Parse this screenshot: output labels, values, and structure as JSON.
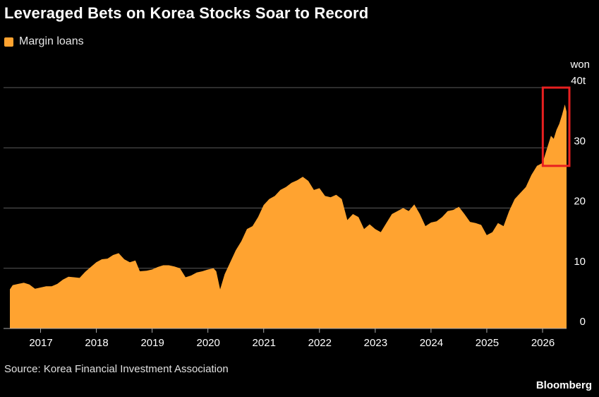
{
  "chart_data": {
    "type": "area",
    "title": "Leveraged Bets on Korea Stocks Soar to Record",
    "series": [
      {
        "name": "Margin loans",
        "color": "#ffa330"
      }
    ],
    "unit_label": "won",
    "y_ticks": [
      "0",
      "10",
      "20",
      "30",
      "40t"
    ],
    "ylim": [
      0,
      40
    ],
    "x_ticks": [
      "2017",
      "2018",
      "2019",
      "2020",
      "2021",
      "2022",
      "2023",
      "2024",
      "2025",
      "2026"
    ],
    "xlim": [
      2016.45,
      2026.43
    ],
    "points": [
      [
        2016.45,
        6.5
      ],
      [
        2016.5,
        7.2
      ],
      [
        2016.6,
        7.4
      ],
      [
        2016.7,
        7.6
      ],
      [
        2016.8,
        7.3
      ],
      [
        2016.9,
        6.6
      ],
      [
        2017.0,
        6.8
      ],
      [
        2017.1,
        7.0
      ],
      [
        2017.2,
        7.0
      ],
      [
        2017.3,
        7.4
      ],
      [
        2017.4,
        8.1
      ],
      [
        2017.5,
        8.6
      ],
      [
        2017.6,
        8.5
      ],
      [
        2017.7,
        8.4
      ],
      [
        2017.8,
        9.4
      ],
      [
        2017.9,
        10.2
      ],
      [
        2018.0,
        11.0
      ],
      [
        2018.1,
        11.5
      ],
      [
        2018.2,
        11.6
      ],
      [
        2018.3,
        12.2
      ],
      [
        2018.4,
        12.5
      ],
      [
        2018.5,
        11.5
      ],
      [
        2018.6,
        11.0
      ],
      [
        2018.7,
        11.3
      ],
      [
        2018.78,
        9.5
      ],
      [
        2018.9,
        9.6
      ],
      [
        2019.0,
        9.8
      ],
      [
        2019.1,
        10.2
      ],
      [
        2019.2,
        10.5
      ],
      [
        2019.3,
        10.5
      ],
      [
        2019.4,
        10.3
      ],
      [
        2019.5,
        10.0
      ],
      [
        2019.6,
        8.5
      ],
      [
        2019.7,
        8.8
      ],
      [
        2019.8,
        9.3
      ],
      [
        2019.9,
        9.5
      ],
      [
        2020.0,
        9.8
      ],
      [
        2020.1,
        10.0
      ],
      [
        2020.15,
        9.5
      ],
      [
        2020.22,
        6.5
      ],
      [
        2020.3,
        9.0
      ],
      [
        2020.4,
        11.0
      ],
      [
        2020.5,
        13.0
      ],
      [
        2020.6,
        14.5
      ],
      [
        2020.7,
        16.5
      ],
      [
        2020.8,
        17.0
      ],
      [
        2020.9,
        18.5
      ],
      [
        2021.0,
        20.5
      ],
      [
        2021.1,
        21.5
      ],
      [
        2021.2,
        22.0
      ],
      [
        2021.3,
        23.0
      ],
      [
        2021.4,
        23.5
      ],
      [
        2021.5,
        24.2
      ],
      [
        2021.6,
        24.6
      ],
      [
        2021.7,
        25.2
      ],
      [
        2021.8,
        24.5
      ],
      [
        2021.9,
        23.0
      ],
      [
        2022.0,
        23.3
      ],
      [
        2022.1,
        22.0
      ],
      [
        2022.2,
        21.8
      ],
      [
        2022.3,
        22.2
      ],
      [
        2022.4,
        21.5
      ],
      [
        2022.5,
        18.0
      ],
      [
        2022.6,
        19.0
      ],
      [
        2022.7,
        18.5
      ],
      [
        2022.8,
        16.5
      ],
      [
        2022.9,
        17.3
      ],
      [
        2023.0,
        16.5
      ],
      [
        2023.1,
        16.0
      ],
      [
        2023.2,
        17.5
      ],
      [
        2023.3,
        19.0
      ],
      [
        2023.4,
        19.5
      ],
      [
        2023.5,
        20.0
      ],
      [
        2023.6,
        19.5
      ],
      [
        2023.7,
        20.6
      ],
      [
        2023.8,
        19.0
      ],
      [
        2023.9,
        17.0
      ],
      [
        2024.0,
        17.6
      ],
      [
        2024.1,
        17.8
      ],
      [
        2024.2,
        18.5
      ],
      [
        2024.3,
        19.5
      ],
      [
        2024.4,
        19.7
      ],
      [
        2024.5,
        20.2
      ],
      [
        2024.6,
        19.0
      ],
      [
        2024.7,
        17.7
      ],
      [
        2024.8,
        17.5
      ],
      [
        2024.9,
        17.2
      ],
      [
        2025.0,
        15.5
      ],
      [
        2025.1,
        16.0
      ],
      [
        2025.2,
        17.5
      ],
      [
        2025.3,
        17.0
      ],
      [
        2025.4,
        19.5
      ],
      [
        2025.5,
        21.5
      ],
      [
        2025.6,
        22.5
      ],
      [
        2025.7,
        23.5
      ],
      [
        2025.8,
        25.5
      ],
      [
        2025.9,
        27.0
      ],
      [
        2026.0,
        27.5
      ],
      [
        2026.05,
        29.0
      ],
      [
        2026.1,
        30.5
      ],
      [
        2026.15,
        32.0
      ],
      [
        2026.2,
        31.5
      ],
      [
        2026.25,
        33.0
      ],
      [
        2026.3,
        34.0
      ],
      [
        2026.35,
        35.5
      ],
      [
        2026.4,
        37.2
      ],
      [
        2026.43,
        36.0
      ]
    ],
    "highlight": {
      "x_range": [
        2026.08,
        2026.43
      ],
      "y_range": [
        27,
        40
      ],
      "color": "#e82020"
    },
    "grid": "horizontal",
    "legend_position": "top-left"
  },
  "source_text": "Source: Korea Financial Investment Association",
  "brand": "Bloomberg"
}
